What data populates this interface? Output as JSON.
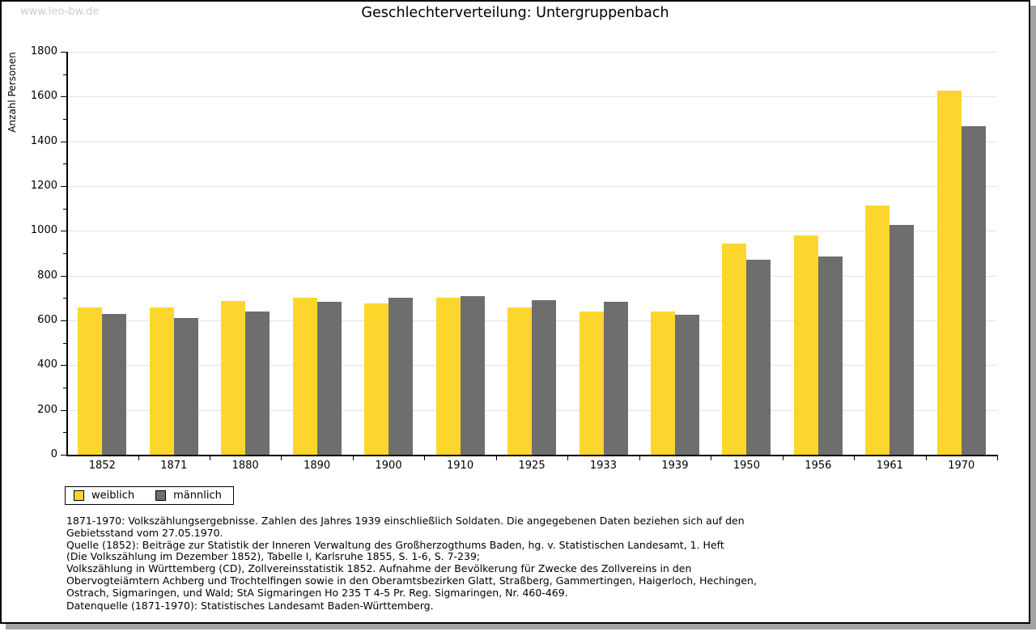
{
  "watermark": "www.leo-bw.de",
  "title": "Geschlechterverteilung: Untergruppenbach",
  "chart_data": {
    "type": "bar",
    "title": "Geschlechterverteilung: Untergruppenbach",
    "xlabel": "",
    "ylabel": "Anzahl Personen",
    "ylim": [
      0,
      1800
    ],
    "ytick_step": 200,
    "ytick_minor_step": 100,
    "grid": "horizontal-major",
    "legend_position": "bottom-left",
    "categories": [
      "1852",
      "1871",
      "1880",
      "1890",
      "1900",
      "1910",
      "1925",
      "1933",
      "1939",
      "1950",
      "1956",
      "1961",
      "1970"
    ],
    "series": [
      {
        "name": "weiblich",
        "color": "#fcd62d",
        "values": [
          658,
          657,
          687,
          701,
          676,
          701,
          657,
          641,
          641,
          945,
          980,
          1112,
          1627
        ]
      },
      {
        "name": "männlich",
        "color": "#6e6e6e",
        "values": [
          629,
          612,
          641,
          683,
          702,
          709,
          690,
          683,
          626,
          873,
          884,
          1025,
          1468
        ]
      }
    ]
  },
  "footnotes": {
    "lines": [
      "1871-1970: Volkszählungsergebnisse. Zahlen des Jahres 1939 einschließlich Soldaten. Die angegebenen Daten beziehen sich auf den",
      "Gebietsstand vom 27.05.1970.",
      "Quelle (1852): Beiträge zur Statistik der Inneren Verwaltung des Großherzogthums Baden, hg. v. Statistischen Landesamt, 1. Heft",
      "(Die Volkszählung im Dezember 1852), Tabelle I, Karlsruhe 1855, S. 1-6, S. 7-239;",
      "Volkszählung in Württemberg (CD), Zollvereinsstatistik 1852. Aufnahme der Bevölkerung für Zwecke des Zollvereins in den",
      "Obervogteiämtern Achberg und Trochtelfingen sowie in den Oberamtsbezirken Glatt, Straßberg, Gammertingen, Haigerloch, Hechingen,",
      "Ostrach, Sigmaringen, und Wald; StA Sigmaringen Ho 235 T 4-5 Pr. Reg. Sigmaringen, Nr. 460-469."
    ],
    "datasource": "Datenquelle (1871-1970): Statistisches Landesamt Baden-Württemberg."
  }
}
